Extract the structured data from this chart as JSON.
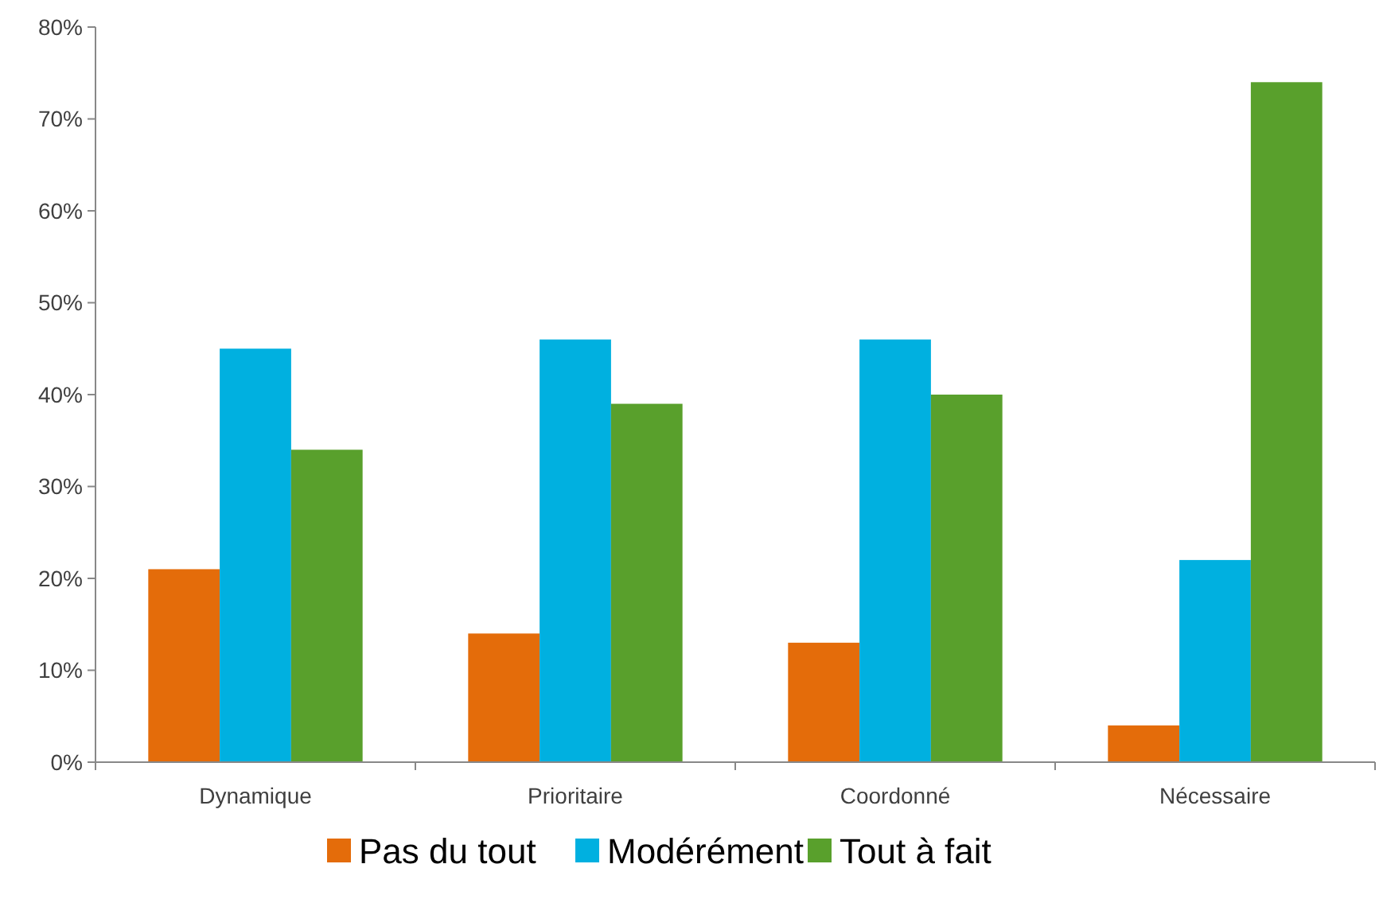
{
  "chart_data": {
    "type": "bar",
    "categories": [
      "Dynamique",
      "Prioritaire",
      "Coordonné",
      "Nécessaire"
    ],
    "series": [
      {
        "name": "Pas du tout",
        "color": "#e46c0a",
        "values": [
          21,
          14,
          13,
          4
        ]
      },
      {
        "name": "Modérément",
        "color": "#00b0e0",
        "values": [
          45,
          46,
          46,
          22
        ]
      },
      {
        "name": "Tout à fait",
        "color": "#59a02c",
        "values": [
          34,
          39,
          40,
          74
        ]
      }
    ],
    "ylim": [
      0,
      80
    ],
    "yticks": [
      {
        "value": 0,
        "label": "0%"
      },
      {
        "value": 10,
        "label": "10%"
      },
      {
        "value": 20,
        "label": "20%"
      },
      {
        "value": 30,
        "label": "30%"
      },
      {
        "value": 40,
        "label": "40%"
      },
      {
        "value": 50,
        "label": "50%"
      },
      {
        "value": 60,
        "label": "60%"
      },
      {
        "value": 70,
        "label": "70%"
      },
      {
        "value": 80,
        "label": "80%"
      }
    ],
    "grid": false,
    "legend": "bottom"
  }
}
